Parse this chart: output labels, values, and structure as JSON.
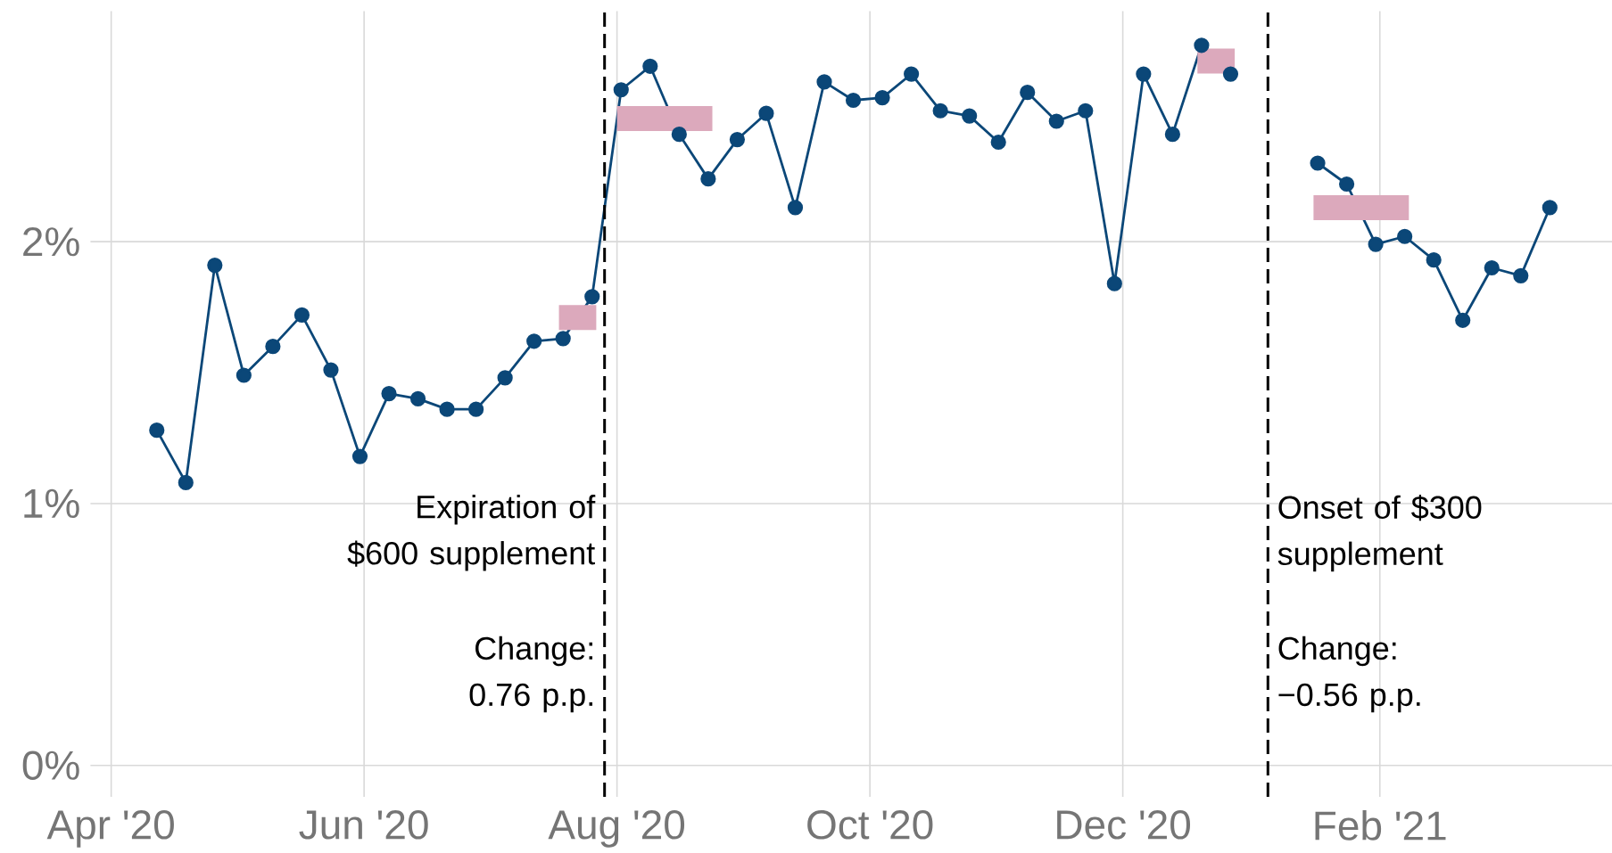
{
  "chart_data": {
    "type": "line",
    "x": [
      "2020-04-12",
      "2020-04-19",
      "2020-04-26",
      "2020-05-03",
      "2020-05-10",
      "2020-05-17",
      "2020-05-24",
      "2020-05-31",
      "2020-06-07",
      "2020-06-14",
      "2020-06-21",
      "2020-06-28",
      "2020-07-05",
      "2020-07-12",
      "2020-07-19",
      "2020-07-26",
      "2020-08-02",
      "2020-08-09",
      "2020-08-16",
      "2020-08-23",
      "2020-08-30",
      "2020-09-06",
      "2020-09-13",
      "2020-09-20",
      "2020-09-27",
      "2020-10-04",
      "2020-10-11",
      "2020-10-18",
      "2020-10-25",
      "2020-11-01",
      "2020-11-08",
      "2020-11-15",
      "2020-11-22",
      "2020-11-29",
      "2020-12-06",
      "2020-12-13",
      "2020-12-20",
      "2020-12-27",
      "2021-01-03",
      "2021-01-10",
      "2021-01-17",
      "2021-01-24",
      "2021-01-31",
      "2021-02-07",
      "2021-02-14",
      "2021-02-21",
      "2021-02-28",
      "2021-03-07",
      "2021-03-14"
    ],
    "series": [
      {
        "color": "#0b4778",
        "marker": "circle",
        "values": [
          1.28,
          1.08,
          1.91,
          1.49,
          1.6,
          1.72,
          1.51,
          1.18,
          1.42,
          1.4,
          1.36,
          1.36,
          1.48,
          1.62,
          1.63,
          1.79,
          2.58,
          2.67,
          2.41,
          2.24,
          2.39,
          2.49,
          2.13,
          2.61,
          2.54,
          2.55,
          2.64,
          2.5,
          2.48,
          2.38,
          2.57,
          2.46,
          2.5,
          1.84,
          2.64,
          2.41,
          2.75,
          2.64,
          null,
          null,
          2.3,
          2.22,
          1.99,
          2.02,
          1.93,
          1.7,
          1.9,
          1.87,
          2.13
        ]
      },
      {
        "type": "line",
        "color": "#dca9bc",
        "marker": "none",
        "x": [
          "2020-07-18",
          "2020-07-27"
        ],
        "values": [
          1.71,
          1.71
        ]
      },
      {
        "type": "line",
        "color": "#dca9bc",
        "marker": "none",
        "x": [
          "2020-08-01",
          "2020-08-24"
        ],
        "values": [
          2.47,
          2.47
        ]
      },
      {
        "type": "line",
        "color": "#dca9bc",
        "marker": "none",
        "x": [
          "2020-12-19",
          "2020-12-28"
        ],
        "values": [
          2.69,
          2.69
        ]
      },
      {
        "type": "line",
        "color": "#dca9bc",
        "marker": "none",
        "x": [
          "2021-01-16",
          "2021-02-08"
        ],
        "values": [
          2.13,
          2.13
        ]
      }
    ],
    "xlim": [
      "2020-03-27",
      "2021-03-29"
    ],
    "xticks": [
      {
        "value": "2020-04-01",
        "label": "Apr '20"
      },
      {
        "value": "2020-06-01",
        "label": "Jun '20"
      },
      {
        "value": "2020-08-01",
        "label": "Aug '20"
      },
      {
        "value": "2020-10-01",
        "label": "Oct '20"
      },
      {
        "value": "2020-12-01",
        "label": "Dec '20"
      },
      {
        "value": "2021-02-01",
        "label": "Feb '21"
      }
    ],
    "ylim": [
      -0.12,
      2.88
    ],
    "yticks": [
      {
        "value": 0,
        "label": "0%"
      },
      {
        "value": 1,
        "label": "1%"
      },
      {
        "value": 2,
        "label": "2%"
      }
    ],
    "grid": true,
    "ref_lines": [
      {
        "axis": "x",
        "value": "2020-07-29",
        "label": "Expiration of $600 supplement",
        "color": "#000000",
        "line_style": "dashed"
      },
      {
        "axis": "x",
        "value": "2021-01-05",
        "label": "Onset of $300 supplement",
        "color": "#000000",
        "line_style": "dashed"
      }
    ],
    "annotations": [
      "Change: 0.76 p.p.",
      "Change: −0.56 p.p."
    ]
  }
}
